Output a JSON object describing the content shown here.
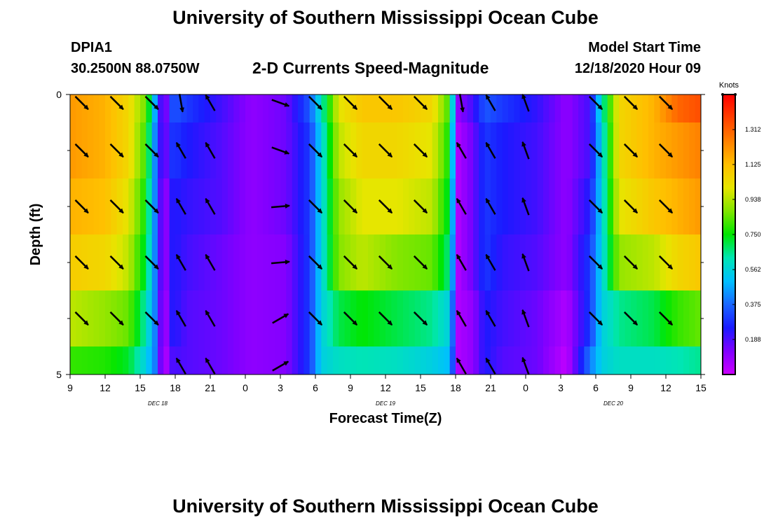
{
  "page": {
    "title_top": "University of Southern Mississippi Ocean Cube",
    "title_bottom": "University of Southern Mississippi Ocean Cube",
    "station_id": "DPIA1",
    "station_coords": "30.2500N 88.0750W",
    "model_start_label": "Model Start Time",
    "model_start_value": "12/18/2020 Hour 09"
  },
  "chart_data": {
    "type": "heatmap",
    "title": "2-D Currents Speed-Magnitude",
    "xlabel": "Forecast Time(Z)",
    "ylabel": "Depth (ft)",
    "x_hours_from_start": [
      0,
      54
    ],
    "x_tick_labels": [
      "9",
      "12",
      "15",
      "18",
      "21",
      "0",
      "3",
      "6",
      "9",
      "12",
      "15",
      "18",
      "21",
      "0",
      "3",
      "6",
      "9",
      "12",
      "15"
    ],
    "date_labels": [
      {
        "label": "DEC 18",
        "hour": 7.5
      },
      {
        "label": "DEC 19",
        "hour": 27
      },
      {
        "label": "DEC 20",
        "hour": 46.5
      }
    ],
    "y_range": [
      0,
      5
    ],
    "y_tick_labels": [
      "0",
      "5"
    ],
    "y_minor_ticks": [
      1,
      2,
      3,
      4
    ],
    "colorbar": {
      "units": "Knots",
      "range": [
        0,
        1.5
      ],
      "tick_values": [
        1.312,
        1.125,
        0.938,
        0.75,
        0.562,
        0.375,
        0.188
      ],
      "tick_labels": [
        "1.312",
        "1.125",
        "0.938",
        "0.750",
        "0.562",
        "0.375",
        "0.188"
      ],
      "colors": [
        "#cc00ff",
        "#8000ff",
        "#1a1aff",
        "#1a66ff",
        "#00bfff",
        "#00e6b3",
        "#00e600",
        "#80e600",
        "#e6e600",
        "#ffbf00",
        "#ff8000",
        "#ff4000",
        "#ff0000"
      ]
    },
    "speed_profile": [
      [
        0,
        1.2,
        1.2,
        1.15,
        1.08,
        0.95,
        0.8
      ],
      [
        3,
        1.15,
        1.15,
        1.12,
        1.05,
        0.9,
        0.78
      ],
      [
        5,
        1.05,
        1.05,
        1.0,
        0.95,
        0.85,
        0.72
      ],
      [
        6.5,
        0.85,
        0.8,
        0.75,
        0.7,
        0.62,
        0.55
      ],
      [
        7.3,
        0.45,
        0.4,
        0.4,
        0.4,
        0.4,
        0.4
      ],
      [
        8.0,
        0.05,
        0.1,
        0.05,
        0.05,
        0.02,
        0.0
      ],
      [
        8.8,
        0.35,
        0.3,
        0.25,
        0.25,
        0.25,
        0.2
      ],
      [
        10,
        0.3,
        0.25,
        0.22,
        0.2,
        0.18,
        0.18
      ],
      [
        13,
        0.2,
        0.18,
        0.18,
        0.15,
        0.15,
        0.15
      ],
      [
        15.5,
        0.1,
        0.1,
        0.1,
        0.1,
        0.1,
        0.1
      ],
      [
        18.5,
        0.15,
        0.15,
        0.15,
        0.12,
        0.12,
        0.12
      ],
      [
        20.5,
        0.35,
        0.3,
        0.3,
        0.3,
        0.3,
        0.3
      ],
      [
        21.5,
        0.6,
        0.55,
        0.55,
        0.55,
        0.55,
        0.55
      ],
      [
        23,
        1.0,
        0.95,
        0.9,
        0.88,
        0.7,
        0.6
      ],
      [
        25,
        1.1,
        1.05,
        1.0,
        0.95,
        0.75,
        0.62
      ],
      [
        28,
        1.1,
        1.05,
        1.0,
        0.88,
        0.7,
        0.6
      ],
      [
        31,
        1.05,
        1.0,
        0.95,
        0.85,
        0.65,
        0.55
      ],
      [
        32.5,
        0.8,
        0.75,
        0.7,
        0.65,
        0.55,
        0.5
      ],
      [
        33.2,
        0.1,
        0.05,
        0.05,
        0.05,
        0.05,
        0.05
      ],
      [
        34.5,
        0.2,
        0.15,
        0.15,
        0.15,
        0.1,
        0.1
      ],
      [
        35.5,
        0.35,
        0.3,
        0.3,
        0.3,
        0.25,
        0.25
      ],
      [
        37,
        0.3,
        0.25,
        0.25,
        0.22,
        0.2,
        0.18
      ],
      [
        40,
        0.22,
        0.2,
        0.2,
        0.18,
        0.15,
        0.15
      ],
      [
        42.5,
        0.1,
        0.1,
        0.1,
        0.1,
        0.05,
        0.02
      ],
      [
        44.5,
        0.2,
        0.2,
        0.25,
        0.3,
        0.3,
        0.4
      ],
      [
        45.5,
        0.6,
        0.55,
        0.55,
        0.55,
        0.55,
        0.55
      ],
      [
        47,
        1.05,
        1.05,
        1.0,
        0.9,
        0.65,
        0.6
      ],
      [
        50,
        1.15,
        1.15,
        1.1,
        0.95,
        0.7,
        0.6
      ],
      [
        52,
        1.3,
        1.2,
        1.15,
        1.05,
        0.8,
        0.62
      ],
      [
        54,
        1.35,
        1.25,
        1.2,
        1.1,
        0.85,
        0.65
      ]
    ],
    "vector_columns": [
      {
        "hour": 1,
        "dirs": [
          "SE",
          "SE",
          "SE",
          "SE",
          "SE",
          null
        ]
      },
      {
        "hour": 4,
        "dirs": [
          "SE",
          "SE",
          "SE",
          "SE",
          "SE",
          null
        ]
      },
      {
        "hour": 7,
        "dirs": [
          "SE",
          "SE",
          "SE",
          "SE",
          "SE",
          null
        ]
      },
      {
        "hour": 9.5,
        "dirs": [
          "S",
          "NW",
          "NW",
          "NW",
          "NW",
          "NW"
        ]
      },
      {
        "hour": 12,
        "dirs": [
          "NW",
          "NW",
          "NW",
          "NW",
          "NW",
          "NW"
        ]
      },
      {
        "hour": 18,
        "dirs": [
          "ESE",
          "ESE",
          "E",
          "E",
          "NE",
          "NE"
        ]
      },
      {
        "hour": 21,
        "dirs": [
          "SE",
          "SE",
          "SE",
          "SE",
          "SE",
          null
        ]
      },
      {
        "hour": 24,
        "dirs": [
          "SE",
          "SE",
          "SE",
          "SE",
          "SE",
          null
        ]
      },
      {
        "hour": 27,
        "dirs": [
          "SE",
          "SE",
          "SE",
          "SE",
          "SE",
          null
        ]
      },
      {
        "hour": 30,
        "dirs": [
          "SE",
          "SE",
          "SE",
          "SE",
          "SE",
          null
        ]
      },
      {
        "hour": 33.5,
        "dirs": [
          "S",
          "NW",
          "NW",
          "NW",
          "NW",
          "NW"
        ]
      },
      {
        "hour": 36,
        "dirs": [
          "NW",
          "NW",
          "NW",
          "NW",
          "NW",
          "NW"
        ]
      },
      {
        "hour": 39,
        "dirs": [
          "NNW",
          "NNW",
          "NNW",
          "NNW",
          "NNW",
          "NNW"
        ]
      },
      {
        "hour": 45,
        "dirs": [
          "SE",
          "SE",
          "SE",
          "SE",
          "SE",
          null
        ]
      },
      {
        "hour": 48,
        "dirs": [
          "SE",
          "SE",
          "SE",
          "SE",
          "SE",
          null
        ]
      },
      {
        "hour": 51,
        "dirs": [
          "SE",
          "SE",
          "SE",
          "SE",
          "SE",
          null
        ]
      }
    ]
  }
}
